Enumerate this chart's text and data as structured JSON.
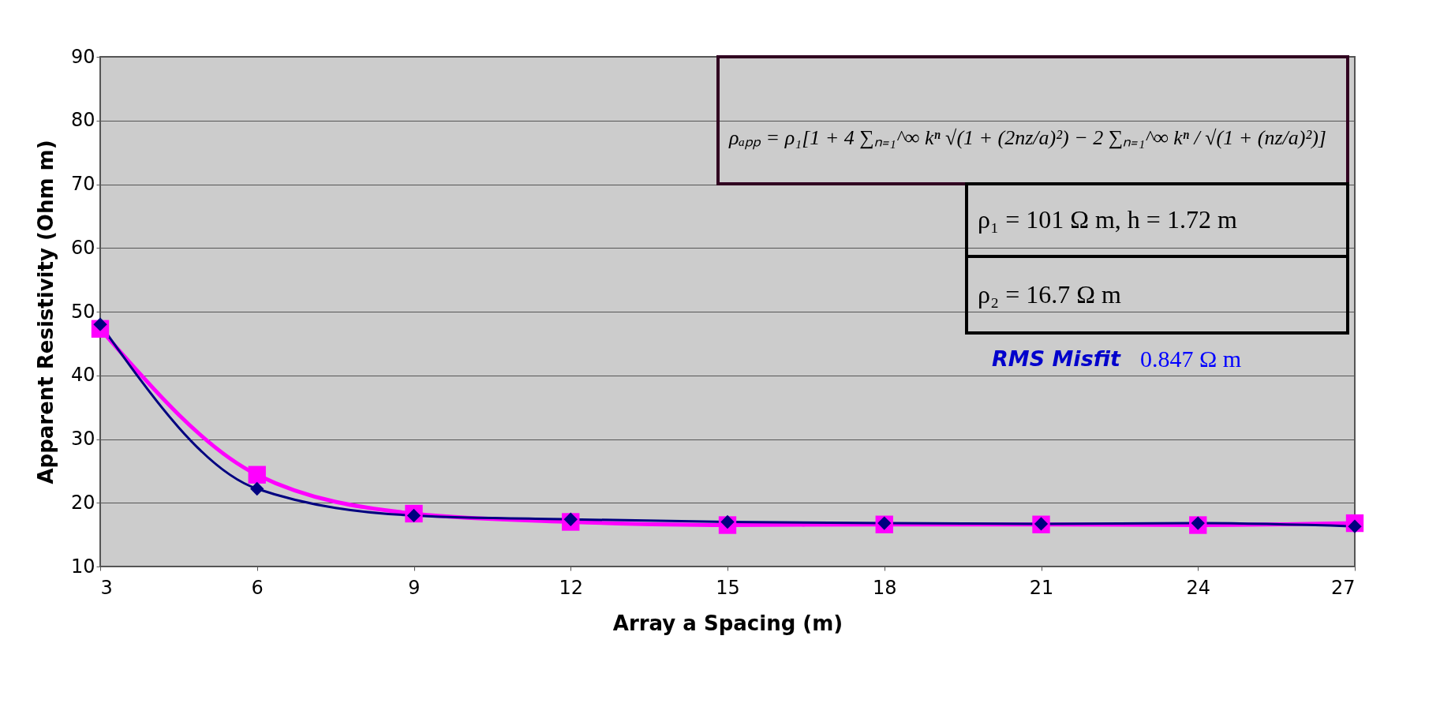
{
  "chart_data": {
    "type": "line",
    "xlabel": "Array a Spacing (m)",
    "ylabel": "Apparent Resistivity (Ohm m)",
    "x": [
      3,
      6,
      9,
      12,
      15,
      18,
      21,
      24,
      27
    ],
    "series": [
      {
        "color": "#000080",
        "marker": "diamond",
        "values": [
          48.0,
          22.2,
          18.0,
          17.4,
          17.0,
          16.8,
          16.7,
          16.8,
          16.3
        ]
      },
      {
        "color": "#ff00ff",
        "marker": "square",
        "values": [
          47.3,
          24.4,
          18.3,
          17.0,
          16.5,
          16.6,
          16.6,
          16.5,
          16.8
        ]
      }
    ],
    "xlim": [
      3,
      27
    ],
    "xticks": [
      3,
      6,
      9,
      12,
      15,
      18,
      21,
      24,
      27
    ],
    "ylim": [
      10,
      90
    ],
    "yticks": [
      10,
      20,
      30,
      40,
      50,
      60,
      70,
      80,
      90
    ],
    "grid": "y",
    "annotations": [
      "ρₐₚₚ = ρ₁[1 + 4 ∑ₙ₌₁^∞ kⁿ √(1 + (2nz/a)²) − 2 ∑ₙ₌₁^∞ kⁿ / √(1 + (nz/a)²)]",
      "ρ₁ = 101 Ω m, h = 1.72 m",
      "ρ₂ = 16.7 Ω m",
      "RMS Misfit",
      "0.847 Ω m"
    ]
  }
}
